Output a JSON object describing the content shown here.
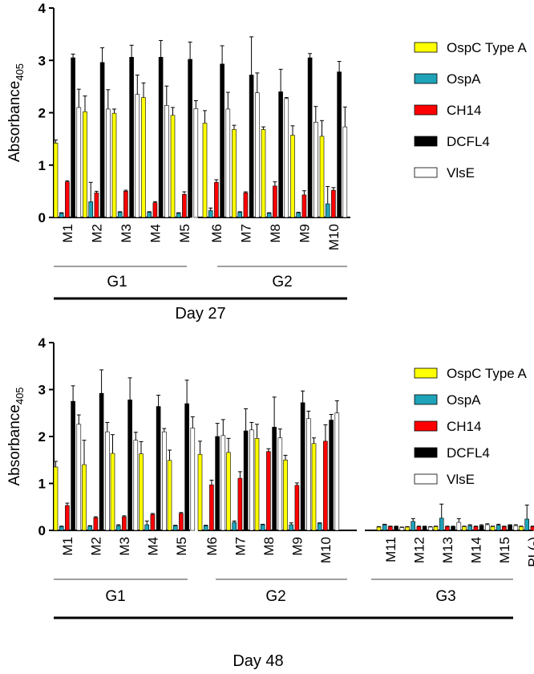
{
  "chart_data": [
    {
      "type": "bar",
      "title": "",
      "ylabel": "Absorbance",
      "ylabel_sub": "405",
      "ylim": [
        0,
        4
      ],
      "yticks": [
        "0",
        "1",
        "2",
        "3",
        "4"
      ],
      "colors": [
        "#ffff00",
        "#1fa3b8",
        "#ff0000",
        "#000000",
        "#ffffff"
      ],
      "series_names": [
        "OspC Type A",
        "OspA",
        "CH14",
        "DCFL4",
        "VlsE"
      ],
      "groups": [
        {
          "name": "G1",
          "mice": [
            {
              "label": "M1",
              "values": [
                1.42,
                0.08,
                0.68,
                3.05,
                2.1
              ],
              "errors": [
                0.06,
                0.01,
                0.02,
                0.07,
                0.35
              ]
            },
            {
              "label": "M2",
              "values": [
                2.02,
                0.3,
                0.47,
                2.96,
                2.07
              ],
              "errors": [
                0.3,
                0.37,
                0.03,
                0.28,
                0.37
              ]
            },
            {
              "label": "M3",
              "values": [
                1.99,
                0.1,
                0.5,
                3.06,
                2.35
              ],
              "errors": [
                0.08,
                0.01,
                0.02,
                0.23,
                0.37
              ]
            },
            {
              "label": "M4",
              "values": [
                2.29,
                0.1,
                0.28,
                3.06,
                2.14
              ],
              "errors": [
                0.28,
                0.01,
                0.02,
                0.32,
                0.37
              ]
            },
            {
              "label": "M5",
              "values": [
                1.95,
                0.08,
                0.44,
                3.02,
                2.08
              ],
              "errors": [
                0.15,
                0.01,
                0.05,
                0.33,
                0.15
              ]
            }
          ]
        },
        {
          "name": "G2",
          "mice": [
            {
              "label": "M6",
              "values": [
                1.8,
                0.13,
                0.67,
                2.93,
                2.07
              ],
              "errors": [
                0.24,
                0.05,
                0.05,
                0.35,
                0.32
              ]
            },
            {
              "label": "M7",
              "values": [
                1.68,
                0.1,
                0.47,
                2.72,
                2.38
              ],
              "errors": [
                0.08,
                0.01,
                0.02,
                0.73,
                0.38
              ]
            },
            {
              "label": "M8",
              "values": [
                1.68,
                0.08,
                0.6,
                2.4,
                2.27
              ],
              "errors": [
                0.05,
                0.01,
                0.08,
                0.43,
                0.02
              ]
            },
            {
              "label": "M9",
              "values": [
                1.57,
                0.09,
                0.43,
                3.05,
                1.82
              ],
              "errors": [
                0.18,
                0.01,
                0.08,
                0.08,
                0.3
              ]
            },
            {
              "label": "M10",
              "values": [
                1.55,
                0.26,
                0.52,
                2.78,
                1.73
              ],
              "errors": [
                0.3,
                0.33,
                0.05,
                0.2,
                0.38
              ]
            }
          ]
        }
      ],
      "day_label": "Day 27"
    },
    {
      "type": "bar",
      "title": "",
      "ylabel": "Absorbance",
      "ylabel_sub": "405",
      "ylim": [
        0,
        4
      ],
      "yticks": [
        "0",
        "1",
        "2",
        "3",
        "4"
      ],
      "colors": [
        "#ffff00",
        "#1fa3b8",
        "#ff0000",
        "#000000",
        "#ffffff"
      ],
      "series_names": [
        "OspC Type A",
        "OspA",
        "CH14",
        "DCFL4",
        "VlsE"
      ],
      "groups": [
        {
          "name": "G1",
          "mice": [
            {
              "label": "M1",
              "values": [
                1.35,
                0.08,
                0.53,
                2.75,
                2.26
              ],
              "errors": [
                0.12,
                0.01,
                0.05,
                0.33,
                0.2
              ]
            },
            {
              "label": "M2",
              "values": [
                1.4,
                0.09,
                0.27,
                2.92,
                2.1
              ],
              "errors": [
                0.52,
                0.01,
                0.02,
                0.5,
                0.2
              ]
            },
            {
              "label": "M3",
              "values": [
                1.64,
                0.1,
                0.29,
                2.78,
                1.92
              ],
              "errors": [
                0.4,
                0.02,
                0.02,
                0.47,
                0.17
              ]
            },
            {
              "label": "M4",
              "values": [
                1.63,
                0.12,
                0.34,
                2.64,
                2.1
              ],
              "errors": [
                0.26,
                0.08,
                0.02,
                0.24,
                0.07
              ]
            },
            {
              "label": "M5",
              "values": [
                1.49,
                0.1,
                0.36,
                2.7,
                2.18
              ],
              "errors": [
                0.22,
                0.01,
                0.02,
                0.5,
                0.24
              ]
            }
          ]
        },
        {
          "name": "G2",
          "mice": [
            {
              "label": "M6",
              "values": [
                1.62,
                0.1,
                0.97,
                2.0,
                2.02
              ],
              "errors": [
                0.28,
                0.01,
                0.1,
                0.28,
                0.34
              ]
            },
            {
              "label": "M7",
              "values": [
                1.66,
                0.17,
                1.11,
                2.12,
                2.14
              ],
              "errors": [
                0.3,
                0.03,
                0.14,
                0.47,
                0.16
              ]
            },
            {
              "label": "M8",
              "values": [
                1.96,
                0.12,
                1.68,
                2.2,
                1.97
              ],
              "errors": [
                0.3,
                0.01,
                0.06,
                0.64,
                0.19
              ]
            },
            {
              "label": "M9",
              "values": [
                1.5,
                0.12,
                0.96,
                2.72,
                2.38
              ],
              "errors": [
                0.1,
                0.04,
                0.05,
                0.25,
                0.16
              ]
            },
            {
              "label": "M10",
              "values": [
                1.85,
                0.15,
                1.9,
                2.35,
                2.5
              ],
              "errors": [
                0.12,
                0.01,
                0.35,
                0.12,
                0.26
              ]
            }
          ]
        },
        {
          "name": "G3",
          "mice": [
            {
              "label": "M11",
              "values": [
                0.07,
                0.12,
                0.08,
                0.08,
                0.06
              ],
              "errors": [
                0.01,
                0.01,
                0.01,
                0.01,
                0.01
              ]
            },
            {
              "label": "M12",
              "values": [
                0.07,
                0.19,
                0.08,
                0.08,
                0.07
              ],
              "errors": [
                0.01,
                0.06,
                0.01,
                0.01,
                0.01
              ]
            },
            {
              "label": "M13",
              "values": [
                0.08,
                0.26,
                0.08,
                0.08,
                0.17
              ],
              "errors": [
                0.01,
                0.3,
                0.01,
                0.01,
                0.08
              ]
            },
            {
              "label": "M14",
              "values": [
                0.08,
                0.1,
                0.08,
                0.1,
                0.12
              ],
              "errors": [
                0.01,
                0.02,
                0.01,
                0.02,
                0.02
              ]
            },
            {
              "label": "M15",
              "values": [
                0.08,
                0.11,
                0.08,
                0.11,
                0.1
              ],
              "errors": [
                0.01,
                0.02,
                0.01,
                0.01,
                0.02
              ]
            },
            {
              "label": "PI (-)",
              "values": [
                0.08,
                0.24,
                0.08,
                0.08,
                0.08
              ],
              "errors": [
                0.01,
                0.3,
                0.01,
                0.01,
                0.02
              ]
            }
          ]
        }
      ],
      "day_label": "Day 48"
    }
  ]
}
